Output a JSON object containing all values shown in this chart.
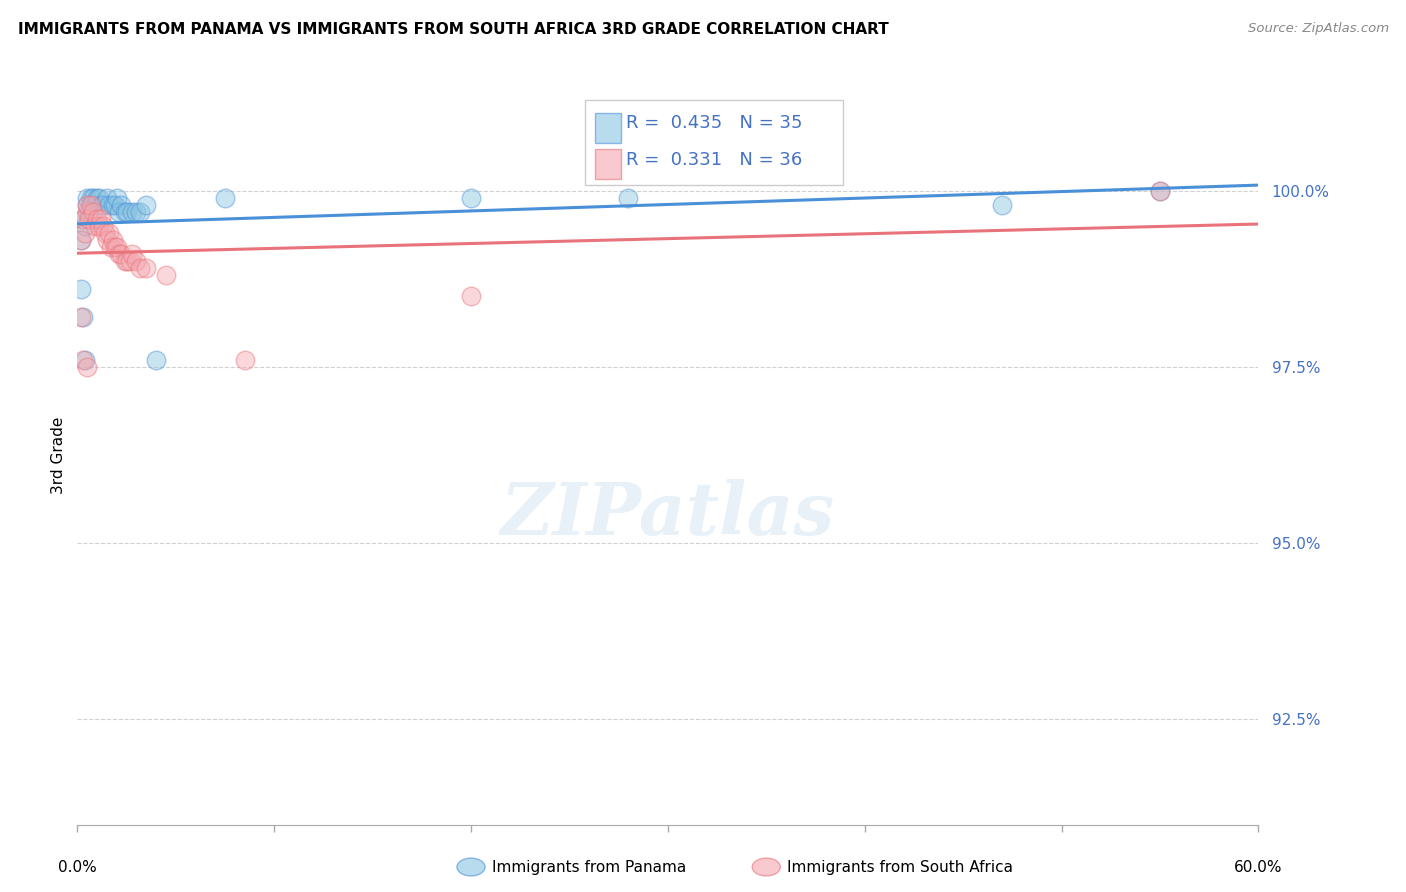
{
  "title": "IMMIGRANTS FROM PANAMA VS IMMIGRANTS FROM SOUTH AFRICA 3RD GRADE CORRELATION CHART",
  "source": "Source: ZipAtlas.com",
  "ylabel": "3rd Grade",
  "y_ticks": [
    92.5,
    95.0,
    97.5,
    100.0
  ],
  "y_tick_labels": [
    "92.5%",
    "95.0%",
    "97.5%",
    "100.0%"
  ],
  "xlim": [
    0.0,
    60.0
  ],
  "ylim": [
    91.0,
    101.5
  ],
  "blue_color": "#89c4e1",
  "pink_color": "#f4a7b0",
  "blue_line_color": "#4a90d9",
  "pink_line_color": "#e8737a",
  "legend_label1": "Immigrants from Panama",
  "legend_label2": "Immigrants from South Africa",
  "panama_x": [
    0.2,
    0.3,
    0.4,
    0.5,
    0.5,
    0.6,
    0.7,
    0.8,
    0.9,
    1.0,
    1.1,
    1.2,
    1.3,
    1.5,
    1.6,
    1.8,
    1.9,
    2.0,
    2.1,
    2.2,
    2.4,
    2.5,
    2.8,
    3.0,
    3.2,
    3.5,
    0.2,
    0.3,
    0.4,
    4.0,
    7.5,
    20.0,
    28.0,
    47.0,
    55.0
  ],
  "panama_y": [
    99.3,
    99.6,
    99.5,
    99.8,
    99.9,
    99.7,
    99.9,
    99.9,
    99.8,
    99.9,
    99.9,
    99.8,
    99.8,
    99.9,
    99.8,
    99.8,
    99.8,
    99.9,
    99.7,
    99.8,
    99.7,
    99.7,
    99.7,
    99.7,
    99.7,
    99.8,
    98.6,
    98.2,
    97.6,
    97.6,
    99.9,
    99.9,
    99.9,
    99.8,
    100.0
  ],
  "southafrica_x": [
    0.2,
    0.3,
    0.4,
    0.5,
    0.5,
    0.6,
    0.7,
    0.8,
    0.9,
    1.0,
    1.1,
    1.2,
    1.3,
    1.4,
    1.5,
    1.6,
    1.7,
    1.8,
    1.9,
    2.0,
    2.1,
    2.2,
    2.4,
    2.5,
    2.7,
    2.8,
    3.0,
    3.2,
    3.5,
    0.2,
    0.3,
    0.5,
    4.5,
    8.5,
    20.0,
    55.0
  ],
  "southafrica_y": [
    99.3,
    99.6,
    99.4,
    99.7,
    99.8,
    99.6,
    99.8,
    99.7,
    99.5,
    99.6,
    99.5,
    99.6,
    99.5,
    99.4,
    99.3,
    99.4,
    99.2,
    99.3,
    99.2,
    99.2,
    99.1,
    99.1,
    99.0,
    99.0,
    99.0,
    99.1,
    99.0,
    98.9,
    98.9,
    98.2,
    97.6,
    97.5,
    98.8,
    97.6,
    98.5,
    100.0
  ]
}
